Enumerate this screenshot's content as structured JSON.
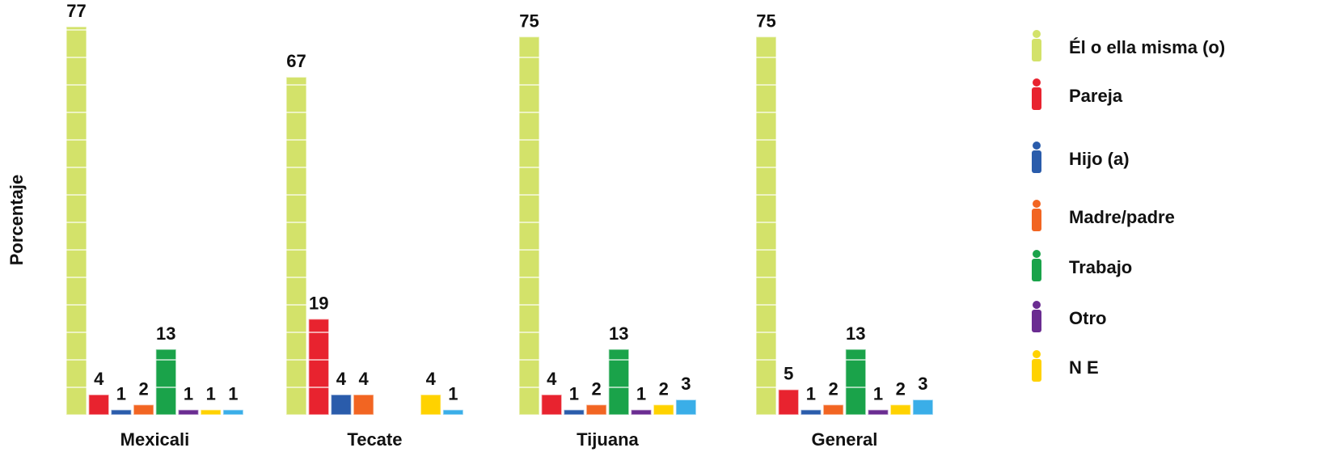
{
  "chart_data": {
    "type": "bar",
    "y_label": "Porcentaje",
    "categories": [
      "Mexicali",
      "Tecate",
      "Tijuana",
      "General"
    ],
    "ylim": [
      0,
      77
    ],
    "legend": "right",
    "series": [
      {
        "name": "Él o ella misma (o)",
        "color": "#d3e26a",
        "values": [
          77,
          67,
          75,
          75
        ]
      },
      {
        "name": "Pareja",
        "color": "#e8232f",
        "values": [
          4,
          19,
          4,
          5
        ]
      },
      {
        "name": "Hijo (a)",
        "color": "#2a5cab",
        "values": [
          1,
          4,
          1,
          1
        ]
      },
      {
        "name": "Madre/padre",
        "color": "#f26522",
        "values": [
          2,
          4,
          2,
          2
        ]
      },
      {
        "name": "Trabajo",
        "color": "#1aa34a",
        "values": [
          13,
          null,
          13,
          13
        ]
      },
      {
        "name": "Otro",
        "color": "#6a2c91",
        "values": [
          1,
          null,
          1,
          1
        ]
      },
      {
        "name": "N E",
        "color": "#ffd200",
        "values": [
          1,
          4,
          2,
          2
        ]
      },
      {
        "color": "#3aaee8",
        "values": [
          1,
          1,
          3,
          3
        ]
      }
    ]
  }
}
